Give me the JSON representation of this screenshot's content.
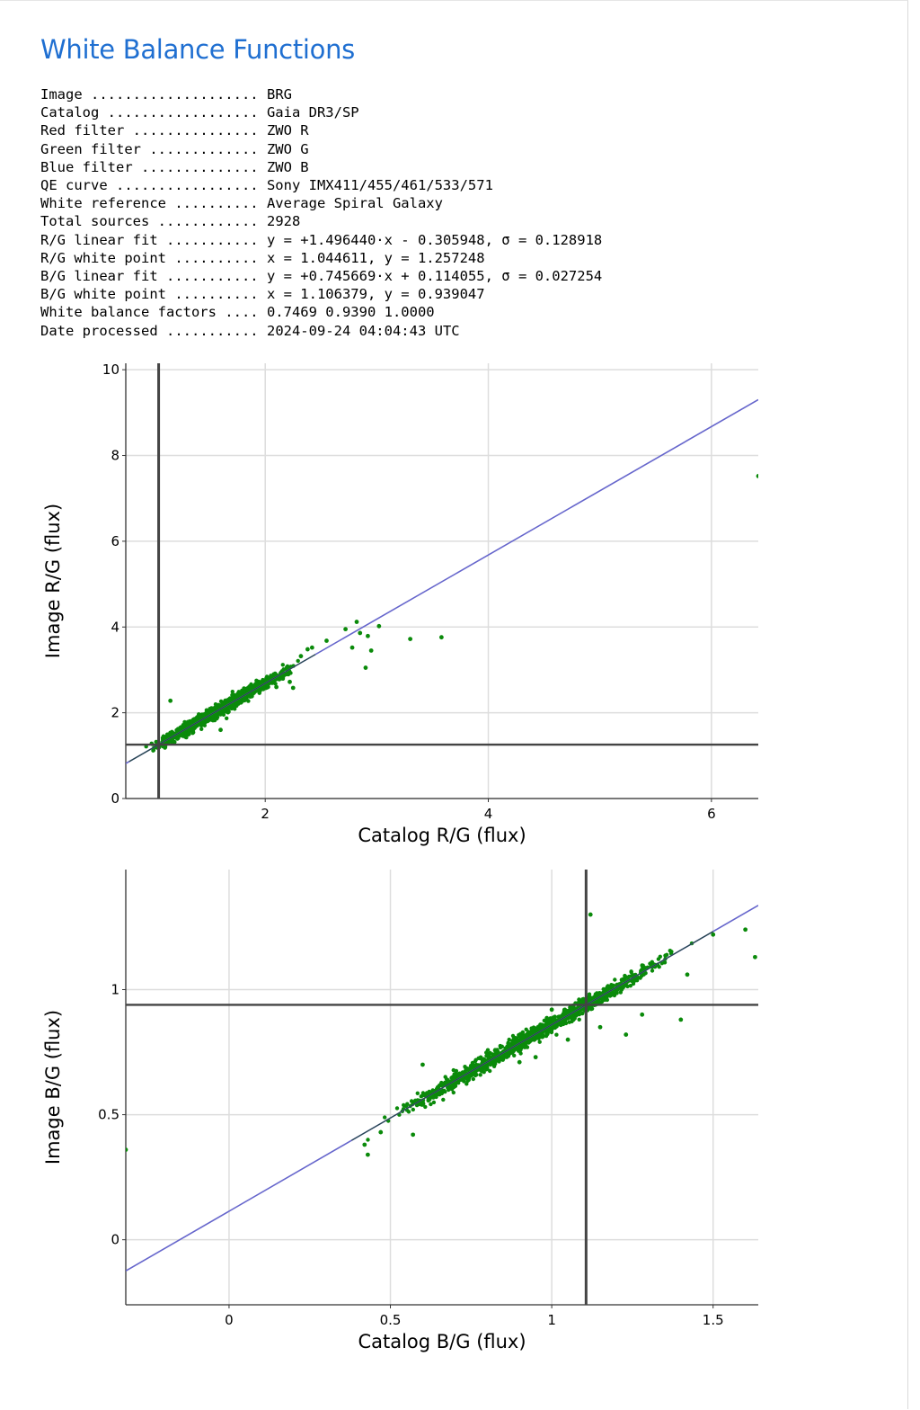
{
  "title": "White Balance Functions",
  "info": [
    {
      "key": "Image",
      "value": "BRG"
    },
    {
      "key": "Catalog",
      "value": "Gaia DR3/SP"
    },
    {
      "key": "Red filter",
      "value": "ZWO R"
    },
    {
      "key": "Green filter",
      "value": "ZWO G"
    },
    {
      "key": "Blue filter",
      "value": "ZWO B"
    },
    {
      "key": "QE curve",
      "value": "Sony IMX411/455/461/533/571"
    },
    {
      "key": "White reference",
      "value": "Average Spiral Galaxy"
    },
    {
      "key": "Total sources",
      "value": "2928"
    },
    {
      "key": "R/G linear fit",
      "value": "y = +1.496440·x - 0.305948, σ = 0.128918"
    },
    {
      "key": "R/G white point",
      "value": "x = 1.044611, y = 1.257248"
    },
    {
      "key": "B/G linear fit",
      "value": "y = +0.745669·x + 0.114055, σ = 0.027254"
    },
    {
      "key": "B/G white point",
      "value": "x = 1.106379, y = 0.939047"
    },
    {
      "key": "White balance factors",
      "value": "0.7469 0.9390 1.0000"
    },
    {
      "key": "Date processed",
      "value": "2024-09-24 04:04:43 UTC"
    }
  ],
  "colors": {
    "title": "#1f6fd1",
    "points": "#0a8a0a",
    "fit_line": "#6666cc",
    "white_point_lines": "#444444",
    "grid": "#dddddd"
  },
  "chart_data": [
    {
      "type": "scatter",
      "title": "",
      "xlabel": "Catalog R/G (flux)",
      "ylabel": "Image R/G (flux)",
      "xlim": [
        0.75,
        6.42
      ],
      "ylim": [
        0,
        10.15
      ],
      "xticks": [
        2,
        4,
        6
      ],
      "yticks": [
        0,
        2,
        4,
        6,
        8,
        10
      ],
      "grid": true,
      "fit": {
        "slope": 1.49644,
        "intercept": -0.305948,
        "sigma": 0.128918
      },
      "white_point": {
        "x": 1.044611,
        "y": 1.257248
      },
      "total_points": 2928,
      "cluster": {
        "x_min": 0.78,
        "x_max": 2.45
      },
      "outliers": [
        [
          2.82,
          4.12
        ],
        [
          2.72,
          3.95
        ],
        [
          2.85,
          3.86
        ],
        [
          2.92,
          3.79
        ],
        [
          3.02,
          4.02
        ],
        [
          2.78,
          3.52
        ],
        [
          2.95,
          3.45
        ],
        [
          2.55,
          3.68
        ],
        [
          2.9,
          3.05
        ],
        [
          2.42,
          3.52
        ],
        [
          3.3,
          3.72
        ],
        [
          3.58,
          3.76
        ],
        [
          6.42,
          7.52
        ],
        [
          2.32,
          3.32
        ],
        [
          2.38,
          3.48
        ],
        [
          2.22,
          2.72
        ],
        [
          2.25,
          2.58
        ],
        [
          2.1,
          2.6
        ],
        [
          1.6,
          1.6
        ],
        [
          1.15,
          2.28
        ]
      ]
    },
    {
      "type": "scatter",
      "title": "",
      "xlabel": "Catalog B/G (flux)",
      "ylabel": "Image B/G (flux)",
      "xlim": [
        -0.32,
        1.64
      ],
      "ylim": [
        -0.26,
        1.48
      ],
      "xticks": [
        0,
        0.5,
        1,
        1.5
      ],
      "yticks": [
        0,
        0.5,
        1
      ],
      "grid": true,
      "fit": {
        "slope": 0.745669,
        "intercept": 0.114055,
        "sigma": 0.027254
      },
      "white_point": {
        "x": 1.106379,
        "y": 0.939047
      },
      "total_points": 2928,
      "cluster": {
        "x_min": 0.38,
        "x_max": 1.5
      },
      "outliers": [
        [
          1.12,
          1.3
        ],
        [
          1.6,
          1.24
        ],
        [
          1.63,
          1.13
        ],
        [
          1.5,
          1.22
        ],
        [
          1.42,
          1.06
        ],
        [
          1.4,
          0.88
        ],
        [
          1.28,
          0.9
        ],
        [
          1.23,
          0.82
        ],
        [
          1.15,
          0.85
        ],
        [
          1.05,
          0.8
        ],
        [
          0.95,
          0.73
        ],
        [
          0.9,
          0.71
        ],
        [
          0.6,
          0.7
        ],
        [
          0.57,
          0.42
        ],
        [
          1.0,
          0.92
        ],
        [
          0.43,
          0.34
        ],
        [
          0.42,
          0.38
        ],
        [
          0.47,
          0.43
        ],
        [
          0.7,
          0.62
        ],
        [
          -0.32,
          0.36
        ]
      ]
    }
  ]
}
